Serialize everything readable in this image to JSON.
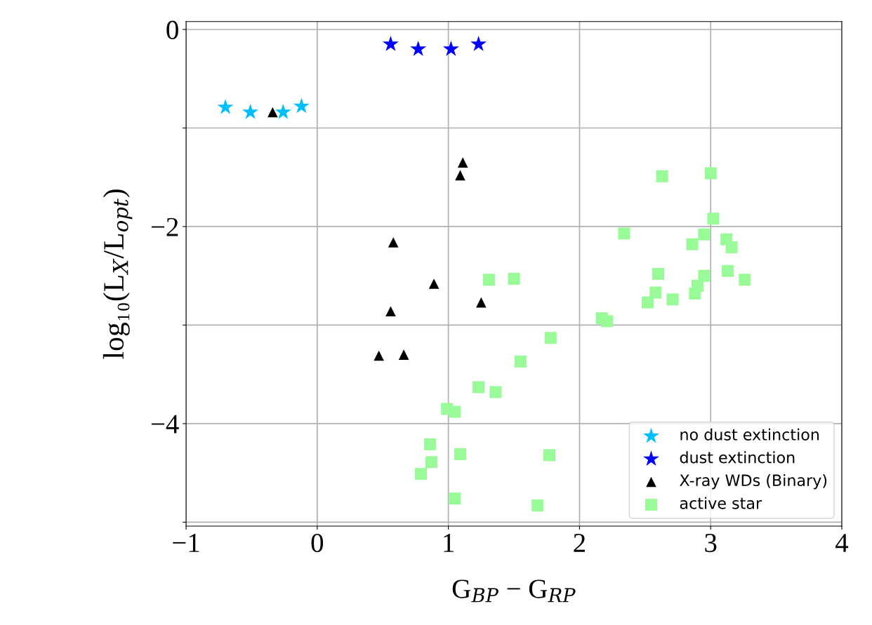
{
  "chart_data": {
    "type": "scatter",
    "xlabel": "G$_{BP}$ − G$_{RP}$",
    "ylabel": "log₁₀(L$_{X}$/L$_{opt}$)",
    "xlim": [
      -1.0,
      4.0
    ],
    "ylim": [
      -5.04,
      0.08
    ],
    "xticks": [
      {
        "value": -1,
        "label": "−1"
      },
      0,
      1,
      2,
      3,
      4
    ],
    "yticks": [
      0,
      {
        "value": -1,
        "label": null
      },
      {
        "value": -2,
        "label": "−2"
      },
      {
        "value": -3,
        "label": null
      },
      {
        "value": -4,
        "label": "−4"
      },
      {
        "value": -5,
        "label": null
      }
    ],
    "grid": true,
    "legend": "bottom right",
    "series": [
      {
        "name": "no dust extinction",
        "color": "#00bfff",
        "marker": "star",
        "x": [
          -0.7,
          -0.51,
          -0.26,
          -0.12
        ],
        "values": [
          -0.79,
          -0.84,
          -0.84,
          -0.78
        ]
      },
      {
        "name": "dust extinction",
        "color": "#0000ff",
        "marker": "star",
        "x": [
          0.56,
          0.77,
          1.02,
          1.23
        ],
        "values": [
          -0.15,
          -0.2,
          -0.2,
          -0.15
        ]
      },
      {
        "name": "X-ray WDs (Binary)",
        "color": "#000000",
        "marker": "triangle",
        "x": [
          -0.34,
          1.11,
          1.09,
          0.58,
          0.89,
          0.56,
          1.25,
          0.47,
          0.66
        ],
        "values": [
          -0.84,
          -1.35,
          -1.48,
          -2.16,
          -2.58,
          -2.86,
          -2.77,
          -3.31,
          -3.3
        ]
      },
      {
        "name": "active star",
        "color": "#98fb98",
        "marker": "square",
        "x": [
          1.31,
          1.5,
          1.78,
          1.55,
          1.23,
          1.36,
          0.99,
          1.05,
          0.86,
          1.09,
          1.77,
          0.87,
          0.79,
          1.05,
          1.68,
          2.63,
          3.0,
          3.02,
          2.34,
          2.95,
          3.12,
          3.16,
          2.86,
          3.13,
          2.6,
          2.95,
          3.26,
          2.9,
          2.58,
          2.88,
          2.52,
          2.71,
          2.17,
          2.21
        ],
        "values": [
          -2.54,
          -2.53,
          -3.13,
          -3.37,
          -3.63,
          -3.68,
          -3.85,
          -3.88,
          -4.21,
          -4.31,
          -4.32,
          -4.39,
          -4.51,
          -4.76,
          -4.83,
          -1.49,
          -1.46,
          -1.92,
          -2.07,
          -2.08,
          -2.13,
          -2.21,
          -2.18,
          -2.45,
          -2.48,
          -2.5,
          -2.54,
          -2.6,
          -2.67,
          -2.68,
          -2.77,
          -2.74,
          -2.93,
          -2.96
        ]
      }
    ]
  }
}
